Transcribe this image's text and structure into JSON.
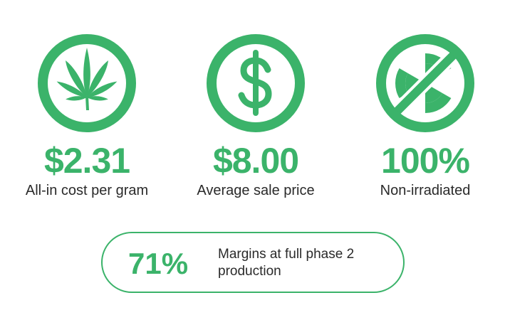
{
  "stats": [
    {
      "icon": "cannabis-leaf-icon",
      "value": "$2.31",
      "label": "All-in cost per gram"
    },
    {
      "icon": "dollar-sign-icon",
      "value": "$8.00",
      "label": "Average sale price"
    },
    {
      "icon": "no-radiation-icon",
      "value": "100%",
      "label": "Non-irradiated"
    }
  ],
  "highlight": {
    "value": "71%",
    "text": "Margins at full phase 2 production"
  },
  "colors": {
    "accent": "#3bb36a",
    "text": "#2a2a2a"
  }
}
